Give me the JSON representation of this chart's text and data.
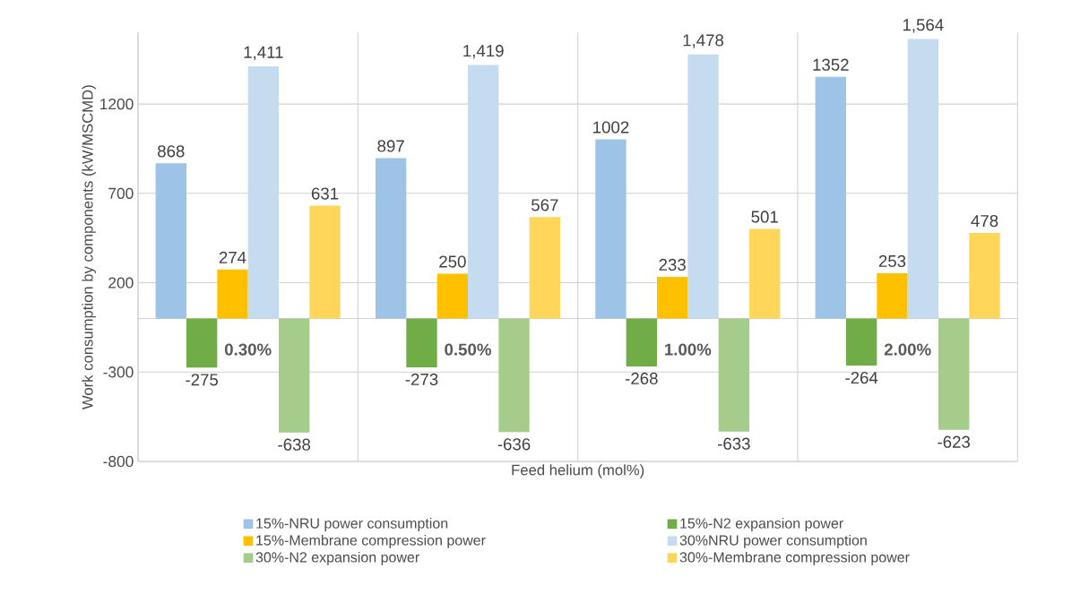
{
  "chart_data": {
    "type": "bar",
    "xlabel": "Feed helium (mol%)",
    "ylabel": "Work consumption by components (kW/MSCMD)",
    "categories": [
      "0.30%",
      "0.50%",
      "1.00%",
      "2.00%"
    ],
    "series": [
      {
        "name": "15%-NRU power consumption",
        "color": "#9dc3e6",
        "values": [
          868,
          897,
          1002,
          1352
        ],
        "value_labels": [
          "868",
          "897",
          "1002",
          "1352"
        ]
      },
      {
        "name": "15%-N2 expansion power",
        "color": "#70ad47",
        "values": [
          -275,
          -273,
          -268,
          -264
        ],
        "value_labels": [
          "-275",
          "-273",
          "-268",
          "-264"
        ]
      },
      {
        "name": "15%-Membrane compression power",
        "color": "#ffc000",
        "values": [
          274,
          250,
          233,
          253
        ],
        "value_labels": [
          "274",
          "250",
          "233",
          "253"
        ]
      },
      {
        "name": "30%NRU power consumption",
        "color": "#c4dbf0",
        "values": [
          1411,
          1419,
          1478,
          1564
        ],
        "value_labels": [
          "1,411",
          "1,419",
          "1,478",
          "1,564"
        ]
      },
      {
        "name": "30%-N2 expansion power",
        "color": "#a6cc8c",
        "values": [
          -638,
          -636,
          -633,
          -623
        ],
        "value_labels": [
          "-638",
          "-636",
          "-633",
          "-623"
        ]
      },
      {
        "name": "30%-Membrane compression power",
        "color": "#ffd55a",
        "values": [
          631,
          567,
          501,
          478
        ],
        "value_labels": [
          "631",
          "567",
          "501",
          "478"
        ]
      }
    ],
    "ylim": [
      -800,
      1600
    ],
    "yticks": [
      -800,
      -300,
      200,
      700,
      1200
    ],
    "grid": true,
    "legend": "bottom"
  }
}
